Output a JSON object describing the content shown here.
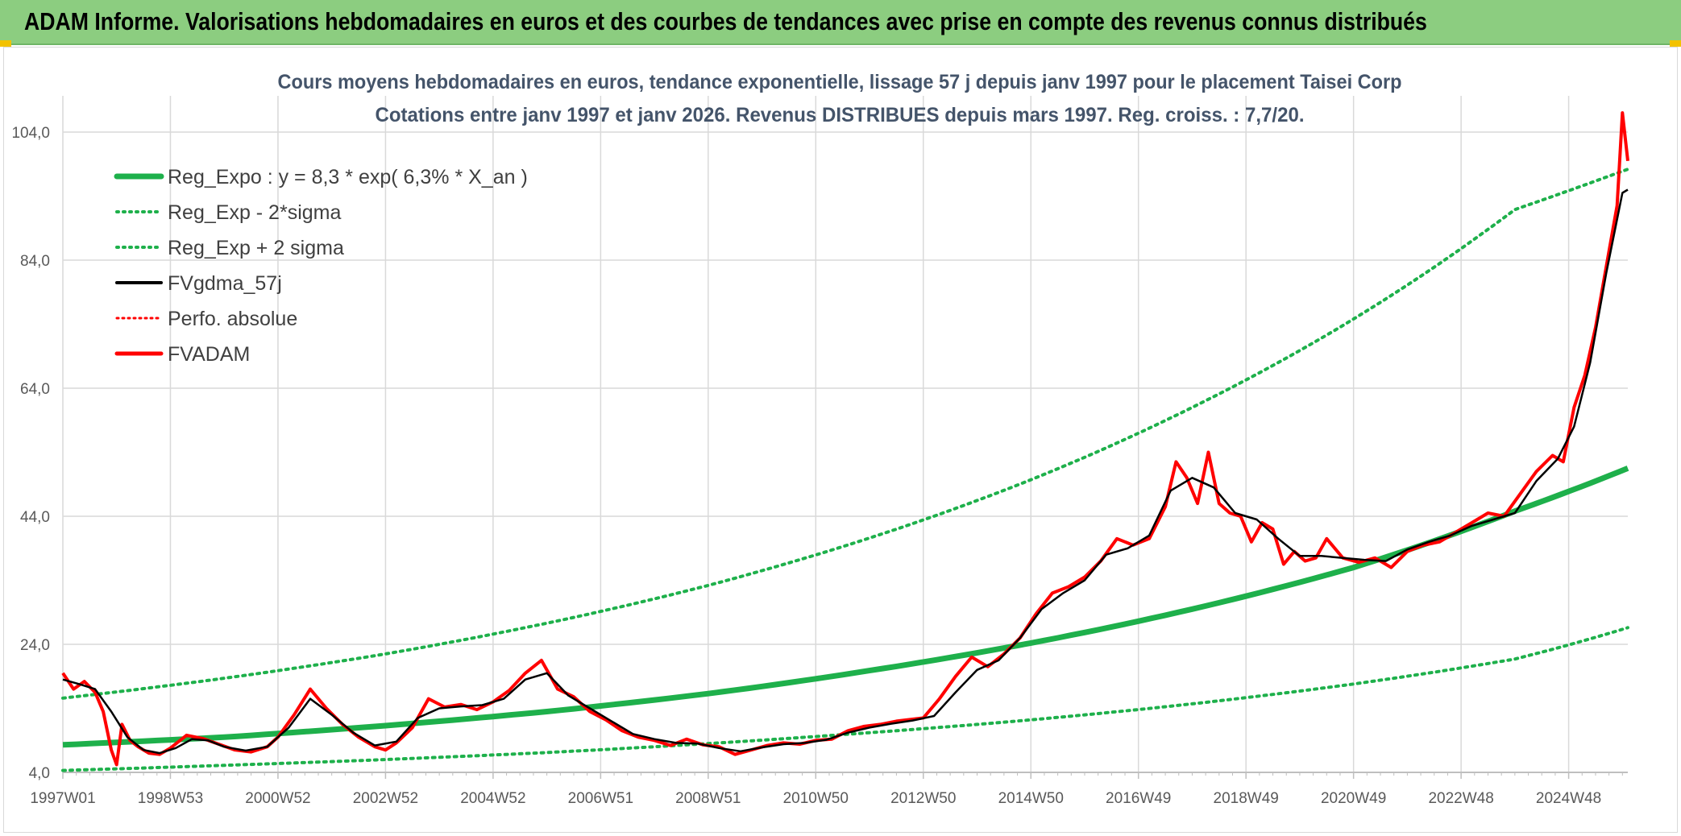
{
  "header": {
    "title": "ADAM Informe. Valorisations hebdomadaires en euros et des courbes de tendances avec prise en compte des revenus connus distribués"
  },
  "colors": {
    "banner": "#8ccd80",
    "reg_expo": "#1eb04b",
    "reg_bands": "#1eb04b",
    "fvgdma": "#000000",
    "perfo": "#ff0000",
    "fvadam": "#ff0000",
    "grid": "#d9d9d9"
  },
  "chart_data": {
    "type": "line",
    "title_line1": "Cours moyens hebdomadaires en euros, tendance exponentielle, lissage 57 j depuis janv 1997 pour le placement Taisei Corp",
    "title_line2": "Cotations entre janv 1997 et janv 2026. Revenus DISTRIBUES depuis mars 1997. Reg. croiss. : 7,7/20.",
    "ylim": [
      4,
      104
    ],
    "yticks": [
      "4,0",
      "24,0",
      "44,0",
      "64,0",
      "84,0",
      "104,0"
    ],
    "ytick_values": [
      4,
      24,
      44,
      64,
      84,
      104
    ],
    "xlim": [
      1997.0,
      2026.1
    ],
    "xticks": [
      "1997W01",
      "1998W53",
      "2000W52",
      "2002W52",
      "2004W52",
      "2006W51",
      "2008W51",
      "2010W50",
      "2012W50",
      "2014W50",
      "2016W49",
      "2018W49",
      "2020W49",
      "2022W48",
      "2024W48"
    ],
    "xtick_values": [
      1997.0,
      1999.0,
      2001.0,
      2003.0,
      2005.0,
      2007.0,
      2009.0,
      2011.0,
      2013.0,
      2015.0,
      2017.0,
      2019.0,
      2021.0,
      2023.0,
      2025.0
    ],
    "grid": true,
    "legend_position": "top-left",
    "legend": [
      {
        "key": "reg_expo",
        "label": "Reg_Expo : y = 8,3 * exp( 6,3% *  X_an )",
        "style": "thick"
      },
      {
        "key": "reg_minus",
        "label": "Reg_Exp - 2*sigma",
        "style": "dotted-green"
      },
      {
        "key": "reg_plus",
        "label": "Reg_Exp + 2 sigma",
        "style": "dotted-green"
      },
      {
        "key": "fvgdma",
        "label": "FVgdma_57j",
        "style": "black"
      },
      {
        "key": "perfo",
        "label": "Perfo. absolue",
        "style": "dotted-red"
      },
      {
        "key": "fvadam",
        "label": "FVADAM",
        "style": "red"
      }
    ],
    "trend": {
      "reg_expo": {
        "x": [
          1997.0,
          2000.0,
          2003.0,
          2006.0,
          2009.0,
          2012.0,
          2015.0,
          2018.0,
          2021.0,
          2024.0,
          2026.1
        ],
        "values": [
          8.3,
          9.5,
          11.3,
          13.5,
          16.3,
          19.9,
          24.2,
          29.5,
          36.0,
          44.8,
          51.5
        ]
      },
      "reg_plus": {
        "x": [
          1997.0,
          2000.0,
          2003.0,
          2006.0,
          2009.0,
          2012.0,
          2015.0,
          2018.0,
          2021.0,
          2024.0,
          2026.1
        ],
        "values": [
          15.6,
          18.7,
          22.5,
          27.3,
          33.2,
          40.6,
          49.7,
          61.0,
          74.8,
          91.9,
          98.2
        ]
      },
      "reg_minus": {
        "x": [
          1997.0,
          2000.0,
          2003.0,
          2006.0,
          2009.0,
          2012.0,
          2015.0,
          2018.0,
          2021.0,
          2024.0,
          2026.1
        ],
        "values": [
          4.3,
          5.1,
          6.0,
          7.1,
          8.5,
          10.2,
          12.2,
          14.7,
          17.8,
          21.7,
          26.6
        ]
      }
    },
    "series": [
      {
        "key": "fvadam",
        "name": "FVADAM",
        "x": [
          1997.0,
          1997.2,
          1997.4,
          1997.6,
          1997.75,
          1997.9,
          1998.0,
          1998.1,
          1998.25,
          1998.4,
          1998.6,
          1998.8,
          1999.0,
          1999.3,
          1999.6,
          1999.9,
          2000.2,
          2000.5,
          2000.8,
          2001.0,
          2001.3,
          2001.6,
          2001.9,
          2002.2,
          2002.5,
          2002.8,
          2003.0,
          2003.2,
          2003.5,
          2003.8,
          2004.1,
          2004.4,
          2004.7,
          2005.0,
          2005.3,
          2005.6,
          2005.9,
          2006.2,
          2006.5,
          2006.8,
          2007.1,
          2007.4,
          2007.7,
          2008.0,
          2008.3,
          2008.6,
          2008.9,
          2009.2,
          2009.5,
          2009.8,
          2010.1,
          2010.4,
          2010.7,
          2011.0,
          2011.3,
          2011.6,
          2011.9,
          2012.2,
          2012.5,
          2012.8,
          2013.0,
          2013.3,
          2013.6,
          2013.9,
          2014.2,
          2014.5,
          2014.8,
          2015.1,
          2015.4,
          2015.7,
          2016.0,
          2016.3,
          2016.6,
          2016.9,
          2017.2,
          2017.5,
          2017.7,
          2017.9,
          2018.1,
          2018.3,
          2018.5,
          2018.7,
          2018.9,
          2019.1,
          2019.3,
          2019.5,
          2019.7,
          2019.9,
          2020.1,
          2020.3,
          2020.5,
          2020.8,
          2021.1,
          2021.4,
          2021.7,
          2022.0,
          2022.3,
          2022.6,
          2022.9,
          2023.2,
          2023.5,
          2023.8,
          2024.1,
          2024.4,
          2024.7,
          2024.9,
          2025.1,
          2025.3,
          2025.5,
          2025.7,
          2025.9,
          2026.0,
          2026.1
        ],
        "values": [
          19.5,
          17.0,
          18.2,
          16.5,
          13.5,
          7.5,
          5.2,
          11.5,
          9.0,
          8.0,
          7.0,
          6.8,
          7.8,
          9.8,
          9.3,
          8.4,
          7.5,
          7.2,
          8.0,
          9.5,
          13.0,
          17.0,
          14.0,
          11.5,
          9.5,
          8.0,
          7.5,
          8.6,
          11.0,
          15.5,
          14.2,
          14.6,
          13.8,
          15.0,
          16.8,
          19.5,
          21.5,
          17.0,
          15.8,
          13.5,
          12.2,
          10.5,
          9.5,
          9.0,
          8.2,
          9.2,
          8.3,
          8.0,
          6.8,
          7.5,
          8.2,
          8.6,
          8.4,
          9.0,
          9.2,
          10.5,
          11.2,
          11.5,
          12.0,
          12.3,
          12.5,
          15.5,
          19.0,
          22.0,
          20.5,
          22.5,
          25.0,
          28.8,
          32.0,
          33.0,
          34.5,
          37.0,
          40.5,
          39.5,
          40.5,
          45.5,
          52.5,
          50.0,
          46.0,
          54.0,
          46.0,
          44.5,
          44.0,
          40.0,
          43.0,
          42.0,
          36.5,
          38.5,
          37.0,
          37.5,
          40.5,
          37.5,
          36.8,
          37.5,
          36.0,
          38.5,
          39.5,
          40.0,
          41.5,
          43.0,
          44.5,
          44.0,
          47.5,
          51.0,
          53.5,
          52.5,
          61.0,
          66.0,
          73.5,
          83.0,
          92.5,
          107.0,
          99.5
        ]
      },
      {
        "key": "fvgdma",
        "name": "FVgdma_57j",
        "x": [
          1997.0,
          1997.3,
          1997.6,
          1997.9,
          1998.2,
          1998.5,
          1998.8,
          1999.1,
          1999.4,
          1999.7,
          2000.0,
          2000.4,
          2000.8,
          2001.2,
          2001.6,
          2002.0,
          2002.4,
          2002.8,
          2003.2,
          2003.6,
          2004.0,
          2004.4,
          2004.8,
          2005.2,
          2005.6,
          2006.0,
          2006.4,
          2006.8,
          2007.2,
          2007.6,
          2008.0,
          2008.4,
          2008.8,
          2009.2,
          2009.6,
          2010.0,
          2010.4,
          2010.8,
          2011.2,
          2011.6,
          2012.0,
          2012.4,
          2012.8,
          2013.2,
          2013.6,
          2014.0,
          2014.4,
          2014.8,
          2015.2,
          2015.6,
          2016.0,
          2016.4,
          2016.8,
          2017.2,
          2017.6,
          2018.0,
          2018.4,
          2018.8,
          2019.2,
          2019.6,
          2020.0,
          2020.4,
          2020.8,
          2021.2,
          2021.6,
          2022.0,
          2022.4,
          2022.8,
          2023.2,
          2023.6,
          2024.0,
          2024.4,
          2024.8,
          2025.1,
          2025.4,
          2025.7,
          2026.0,
          2026.1
        ],
        "values": [
          18.5,
          17.8,
          17.0,
          13.5,
          9.5,
          7.5,
          7.0,
          7.8,
          9.2,
          9.0,
          8.0,
          7.4,
          8.0,
          11.0,
          15.5,
          13.0,
          10.2,
          8.2,
          8.8,
          12.5,
          14.0,
          14.3,
          14.5,
          15.5,
          18.5,
          19.5,
          16.0,
          14.0,
          12.0,
          10.0,
          9.2,
          8.6,
          8.5,
          7.8,
          7.3,
          7.9,
          8.4,
          8.6,
          9.1,
          10.2,
          11.0,
          11.6,
          12.1,
          12.8,
          16.5,
          20.0,
          21.5,
          25.0,
          29.5,
          32.0,
          34.0,
          38.0,
          39.0,
          41.0,
          48.0,
          50.0,
          48.5,
          44.5,
          43.5,
          40.5,
          37.8,
          37.8,
          37.5,
          37.2,
          37.0,
          38.8,
          40.0,
          41.0,
          42.5,
          43.5,
          44.5,
          49.5,
          53.0,
          58.0,
          68.0,
          82.0,
          94.5,
          95.0
        ]
      }
    ]
  }
}
